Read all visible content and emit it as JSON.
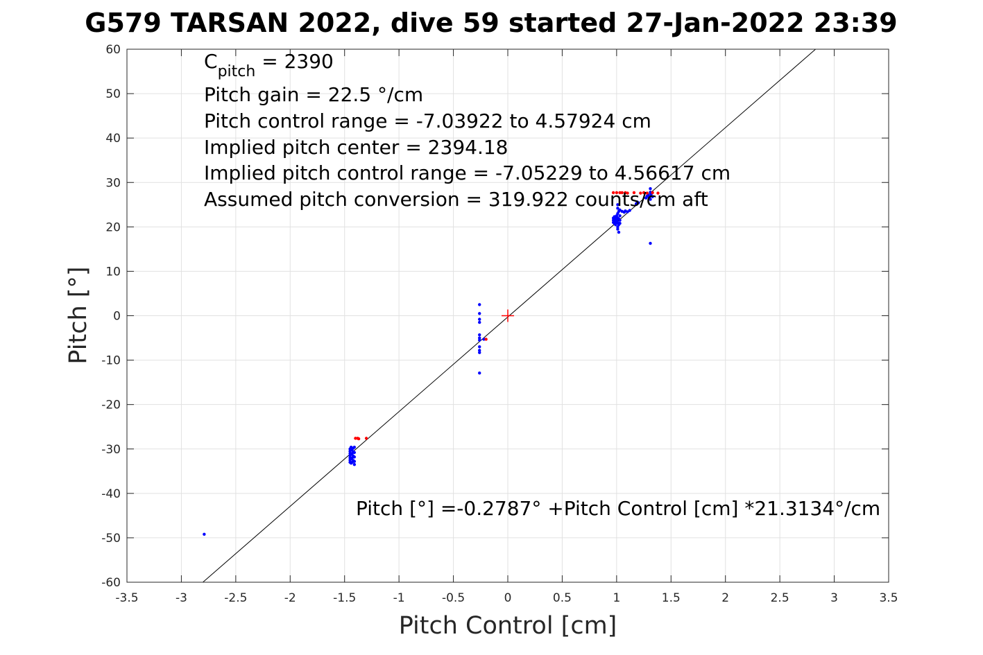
{
  "chart_data": {
    "type": "scatter",
    "title": "G579 TARSAN 2022, dive 59 started 27-Jan-2022 23:39",
    "xlabel": "Pitch Control [cm]",
    "ylabel": "Pitch [°]",
    "xlim": [
      -3.5,
      3.5
    ],
    "ylim": [
      -60,
      60
    ],
    "grid": true,
    "x_ticks": [
      -3.5,
      -3,
      -2.5,
      -2,
      -1.5,
      -1,
      -0.5,
      0,
      0.5,
      1,
      1.5,
      2,
      2.5,
      3,
      3.5
    ],
    "x_tick_labels": [
      "-3.5",
      "-3",
      "-2.5",
      "-2",
      "-1.5",
      "-1",
      "-0.5",
      "0",
      "0.5",
      "1",
      "1.5",
      "2",
      "2.5",
      "3",
      "3.5"
    ],
    "y_ticks": [
      -60,
      -50,
      -40,
      -30,
      -20,
      -10,
      0,
      10,
      20,
      30,
      40,
      50,
      60
    ],
    "y_tick_labels": [
      "-60",
      "-50",
      "-40",
      "-30",
      "-20",
      "-10",
      "0",
      "10",
      "20",
      "30",
      "40",
      "50",
      "60"
    ],
    "annotations": [
      {
        "id": "cpitch",
        "base": "C",
        "sub": "pitch",
        "rest": " = 2390"
      },
      {
        "id": "gain",
        "text": "Pitch gain = 22.5 °/cm"
      },
      {
        "id": "range",
        "text": "Pitch control range = -7.03922 to 4.57924 cm"
      },
      {
        "id": "center",
        "text": "Implied pitch center = 2394.18"
      },
      {
        "id": "implied_range",
        "text": "Implied pitch control range = -7.05229 to 4.56617 cm"
      },
      {
        "id": "conversion",
        "text": "Assumed pitch conversion = 319.922 counts/cm aft"
      },
      {
        "id": "fit_eq",
        "text": "Pitch [°] =-0.2787° +Pitch Control [cm] *21.3134°/cm"
      }
    ],
    "fit_line": {
      "intercept": -0.2787,
      "slope": 21.3134,
      "color": "#000000"
    },
    "center_marker": {
      "x": 0,
      "y": 0,
      "color": "#ff0000"
    },
    "series": [
      {
        "color": "#0000ff",
        "points": [
          [
            -2.79,
            -49.2
          ],
          [
            -1.45,
            -33.0
          ],
          [
            -1.45,
            -32.5
          ],
          [
            -1.45,
            -32.0
          ],
          [
            -1.45,
            -31.5
          ],
          [
            -1.45,
            -31.0
          ],
          [
            -1.45,
            -30.5
          ],
          [
            -1.45,
            -30.0
          ],
          [
            -1.44,
            -33.2
          ],
          [
            -1.44,
            -32.2
          ],
          [
            -1.44,
            -31.2
          ],
          [
            -1.44,
            -30.2
          ],
          [
            -1.44,
            -29.6
          ],
          [
            -1.43,
            -33.0
          ],
          [
            -1.43,
            -32.0
          ],
          [
            -1.43,
            -31.0
          ],
          [
            -1.43,
            -30.0
          ],
          [
            -1.42,
            -32.6
          ],
          [
            -1.42,
            -31.6
          ],
          [
            -1.42,
            -30.6
          ],
          [
            -1.42,
            -29.8
          ],
          [
            -1.41,
            -33.5
          ],
          [
            -1.41,
            -32.8
          ],
          [
            -1.41,
            -31.8
          ],
          [
            -1.41,
            -30.8
          ],
          [
            -1.41,
            -29.6
          ],
          [
            -0.26,
            2.5
          ],
          [
            -0.26,
            0.5
          ],
          [
            -0.26,
            -0.8
          ],
          [
            -0.26,
            -1.5
          ],
          [
            -0.26,
            -4.3
          ],
          [
            -0.26,
            -5.0
          ],
          [
            -0.26,
            -5.5
          ],
          [
            -0.26,
            -7.0
          ],
          [
            -0.26,
            -7.8
          ],
          [
            -0.26,
            -8.3
          ],
          [
            -0.26,
            -12.9
          ],
          [
            -0.22,
            -5.3
          ],
          [
            0.97,
            21.5
          ],
          [
            0.97,
            21.0
          ],
          [
            0.97,
            22.0
          ],
          [
            0.98,
            20.8
          ],
          [
            0.98,
            21.8
          ],
          [
            0.98,
            22.3
          ],
          [
            0.99,
            21.2
          ],
          [
            0.99,
            22.0
          ],
          [
            0.99,
            20.5
          ],
          [
            1.0,
            21.5
          ],
          [
            1.0,
            22.5
          ],
          [
            1.0,
            20.9
          ],
          [
            1.01,
            20.0
          ],
          [
            1.01,
            19.5
          ],
          [
            1.01,
            21.0
          ],
          [
            1.01,
            22.0
          ],
          [
            1.01,
            23.0
          ],
          [
            1.01,
            24.2
          ],
          [
            1.01,
            25.0
          ],
          [
            1.02,
            18.8
          ],
          [
            1.02,
            20.5
          ],
          [
            1.02,
            21.8
          ],
          [
            1.02,
            23.5
          ],
          [
            1.03,
            21.5
          ],
          [
            1.03,
            22.5
          ],
          [
            1.03,
            20.8
          ],
          [
            1.03,
            23.8
          ],
          [
            1.05,
            23.5
          ],
          [
            1.07,
            23.3
          ],
          [
            1.08,
            23.6
          ],
          [
            1.1,
            23.4
          ],
          [
            1.12,
            23.7
          ],
          [
            1.18,
            25.2
          ],
          [
            1.19,
            25.6
          ],
          [
            1.2,
            25.4
          ],
          [
            1.27,
            26.5
          ],
          [
            1.28,
            26.9
          ],
          [
            1.29,
            27.2
          ],
          [
            1.3,
            26.6
          ],
          [
            1.31,
            28.6
          ],
          [
            1.31,
            27.8
          ],
          [
            1.31,
            27.0
          ],
          [
            1.31,
            26.2
          ],
          [
            1.31,
            16.3
          ],
          [
            1.32,
            27.5
          ],
          [
            1.33,
            26.8
          ]
        ]
      },
      {
        "color": "#ff0000",
        "points": [
          [
            -1.4,
            -27.6
          ],
          [
            -1.38,
            -27.6
          ],
          [
            -1.37,
            -27.7
          ],
          [
            -1.3,
            -27.6
          ],
          [
            -0.2,
            -5.3
          ],
          [
            0.97,
            27.7
          ],
          [
            1.0,
            27.7
          ],
          [
            1.03,
            27.7
          ],
          [
            1.05,
            27.7
          ],
          [
            1.08,
            27.7
          ],
          [
            1.1,
            27.6
          ],
          [
            1.16,
            27.7
          ],
          [
            1.22,
            27.6
          ],
          [
            1.25,
            27.7
          ],
          [
            1.28,
            27.6
          ],
          [
            1.33,
            27.7
          ],
          [
            1.38,
            27.6
          ]
        ]
      }
    ]
  }
}
